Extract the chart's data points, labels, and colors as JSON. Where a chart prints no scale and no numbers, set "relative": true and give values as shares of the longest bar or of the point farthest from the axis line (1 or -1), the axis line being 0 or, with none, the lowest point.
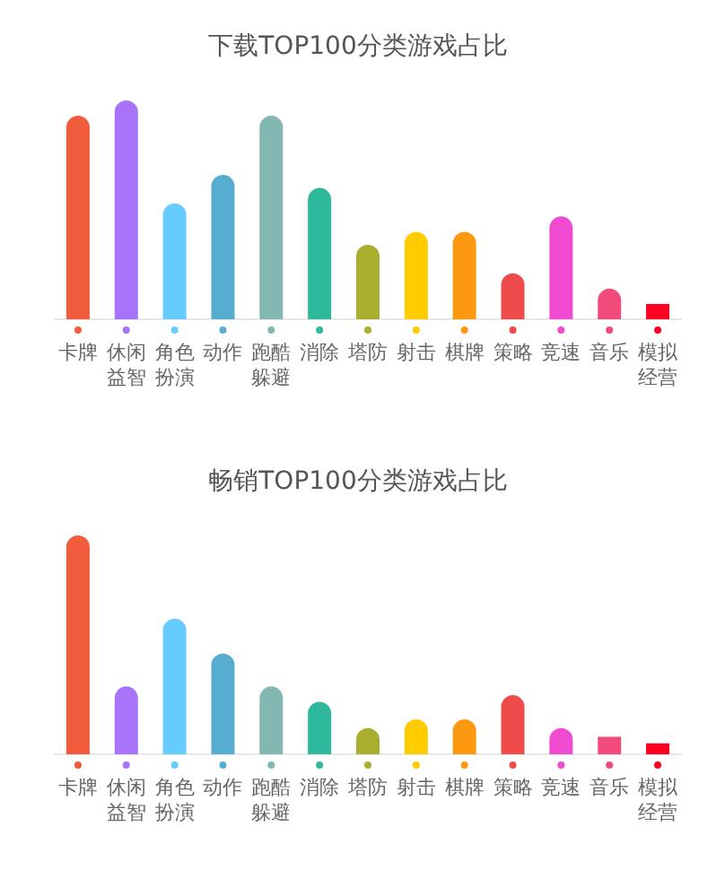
{
  "chart_data": [
    {
      "type": "bar",
      "title": "下载TOP100分类游戏占比",
      "relative": true,
      "categories": [
        "卡牌",
        "休闲益智",
        "角色扮演",
        "动作",
        "跑酷躲避",
        "消除",
        "塔防",
        "射击",
        "棋牌",
        "策略",
        "竞速",
        "音乐",
        "模拟经营"
      ],
      "values": [
        0.93,
        1,
        0.53,
        0.66,
        0.93,
        0.6,
        0.34,
        0.4,
        0.4,
        0.21,
        0.47,
        0.14,
        0.07
      ],
      "colors": [
        "#f05c3c",
        "#a673f9",
        "#66ccff",
        "#56adcf",
        "#82b8b1",
        "#2fb99c",
        "#a9ae2e",
        "#ffcc00",
        "#ff9811",
        "#ef4b4b",
        "#f04bd0",
        "#f04b7a",
        "#ff0022"
      ]
    },
    {
      "type": "bar",
      "title": "畅销TOP100分类游戏占比",
      "relative": true,
      "categories": [
        "卡牌",
        "休闲益智",
        "角色扮演",
        "动作",
        "跑酷躲避",
        "消除",
        "塔防",
        "射击",
        "棋牌",
        "策略",
        "竞速",
        "音乐",
        "模拟经营"
      ],
      "values": [
        1,
        0.31,
        0.62,
        0.46,
        0.31,
        0.24,
        0.12,
        0.16,
        0.16,
        0.27,
        0.12,
        0.08,
        0.05
      ],
      "colors": [
        "#f05c3c",
        "#a673f9",
        "#66ccff",
        "#56adcf",
        "#82b8b1",
        "#2fb99c",
        "#a9ae2e",
        "#ffcc00",
        "#ff9811",
        "#ef4b4b",
        "#f04bd0",
        "#f04b7a",
        "#ff0022"
      ]
    }
  ]
}
